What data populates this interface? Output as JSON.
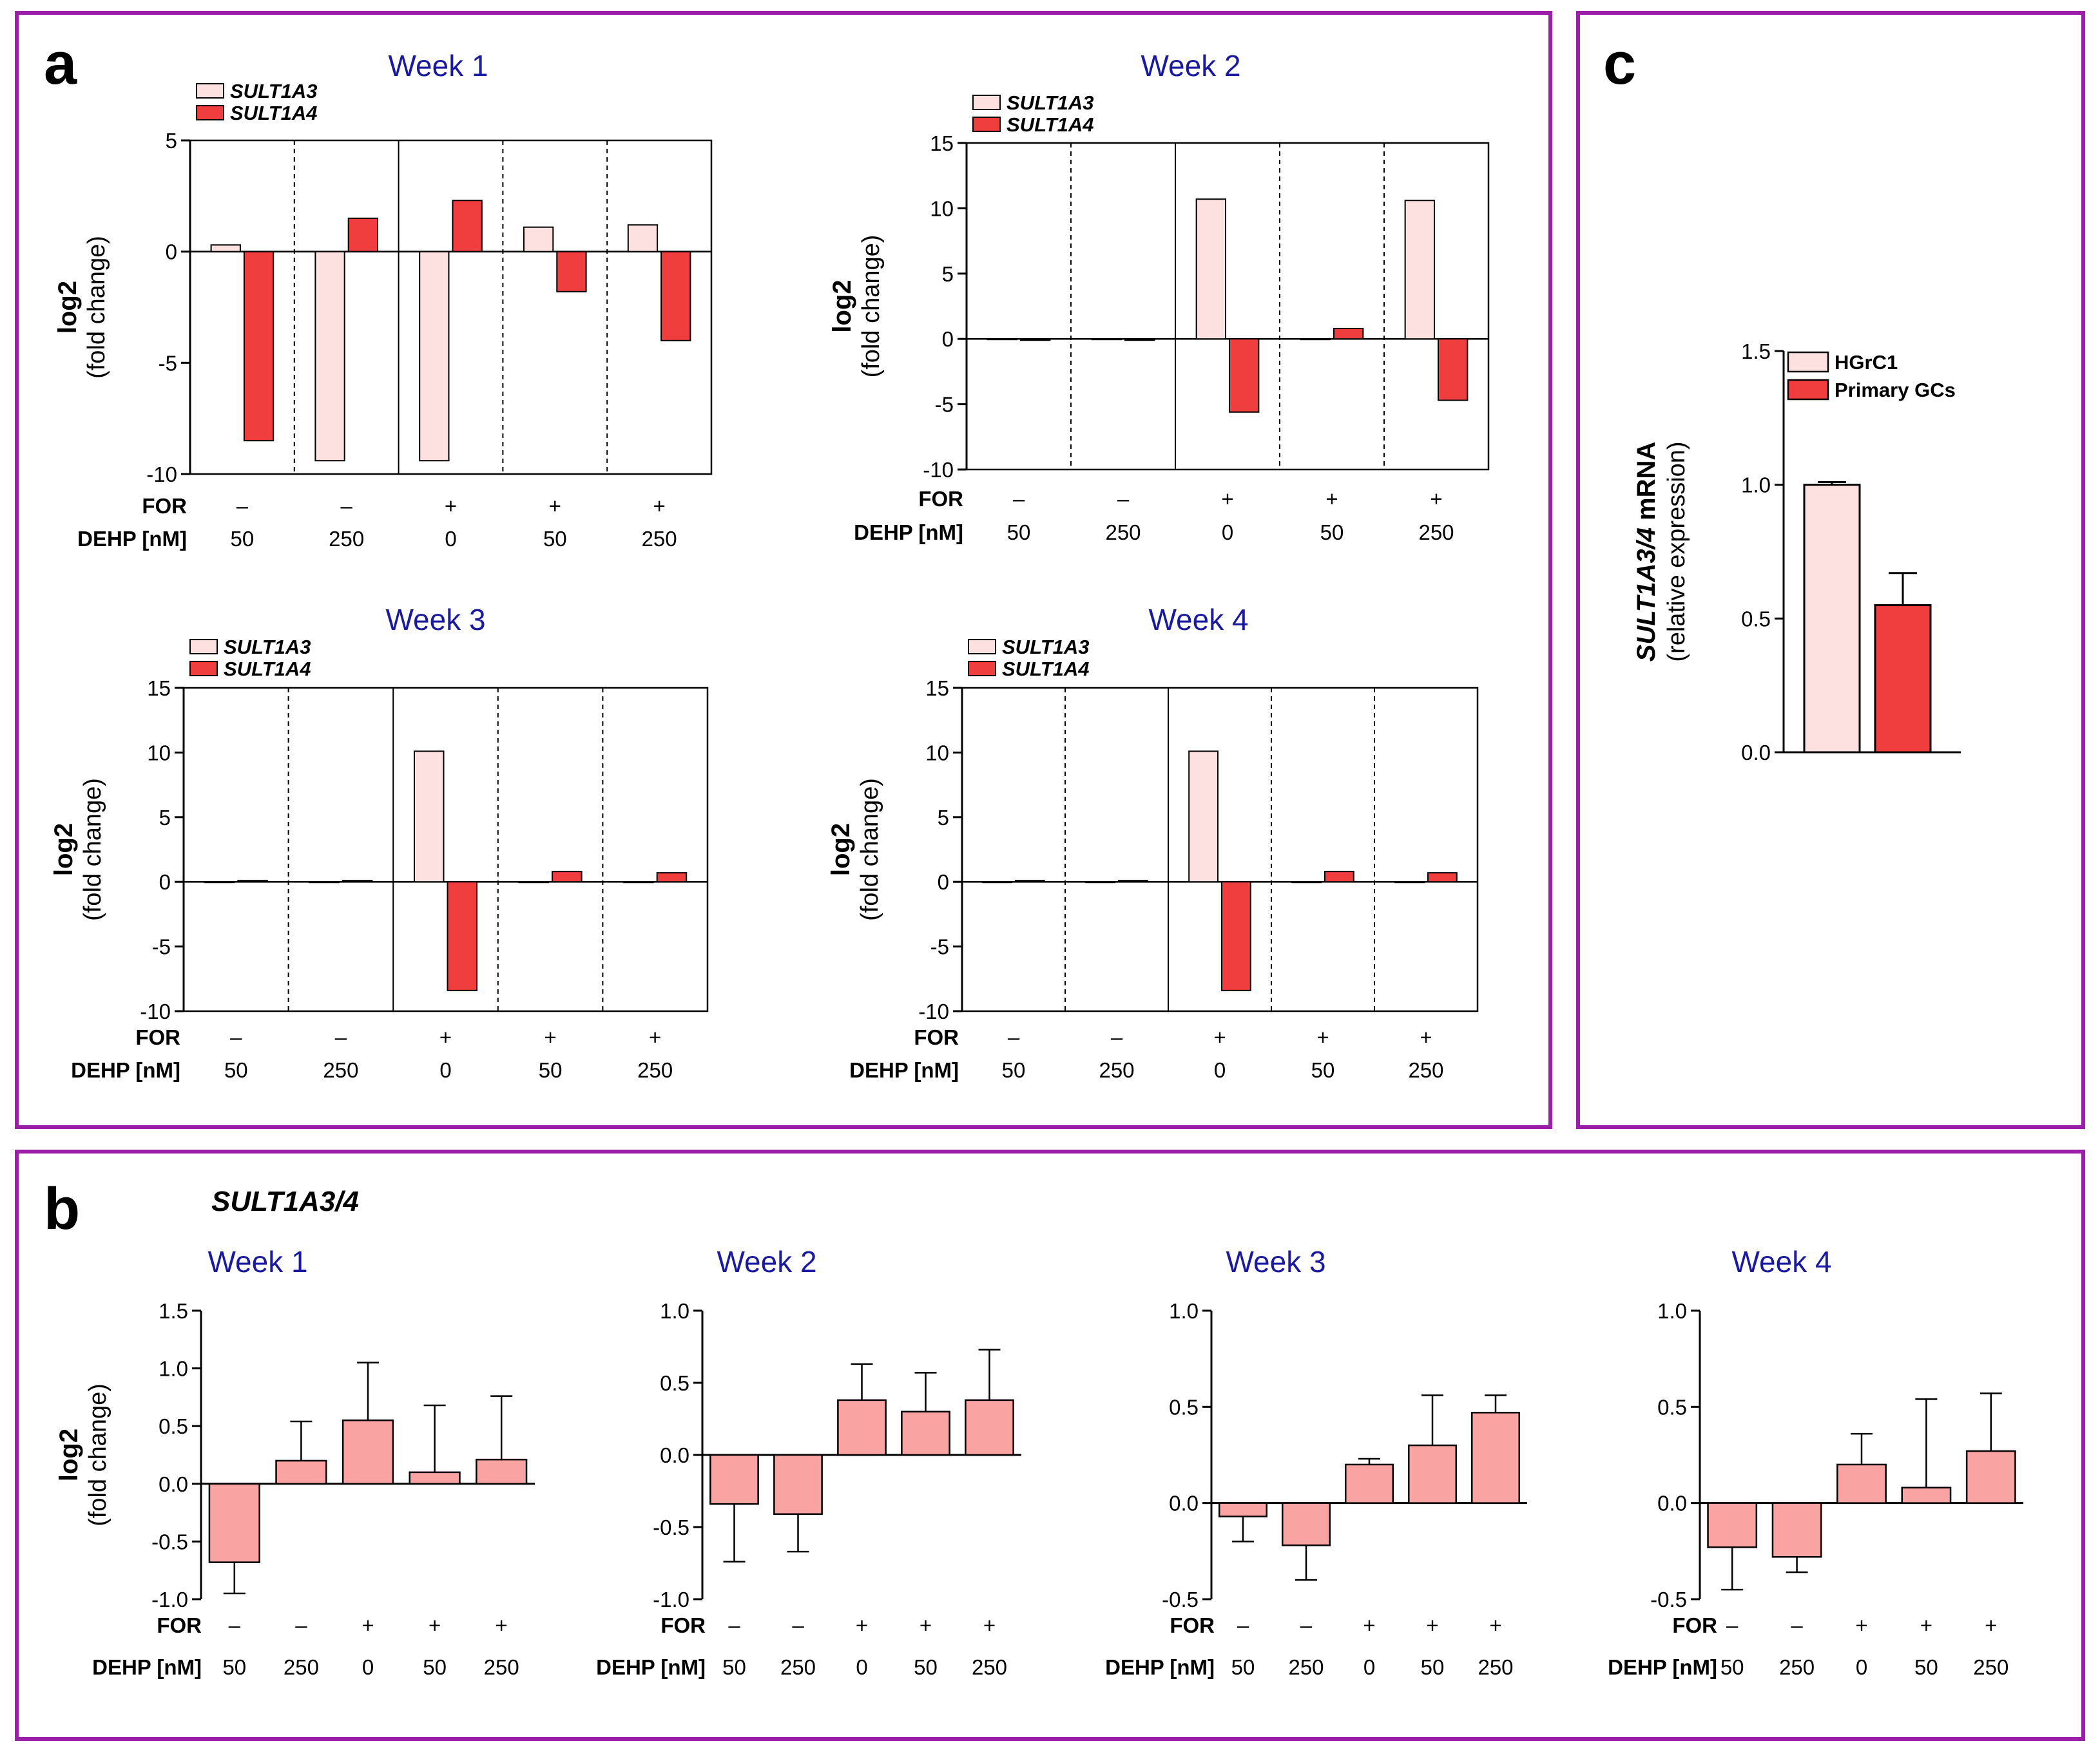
{
  "figure": {
    "frame_color": "#9b1fa8",
    "colors": {
      "sult1a3": "#fde0e0",
      "sult1a4": "#f03e3e",
      "combined": "#f9a3a3",
      "hgrc1": "#fde0e0",
      "primary": "#f03e3e",
      "week_title": "#1a1aa0"
    }
  },
  "panels": {
    "a": {
      "letter": "a",
      "legend": {
        "sult1a3": "SULT1A3",
        "sult1a4": "SULT1A4"
      },
      "ylabel_bold": "log2",
      "ylabel": "(fold change)",
      "row_for": "FOR",
      "row_dehp": "DEHP [nM]",
      "for_values": [
        "–",
        "–",
        "+",
        "+",
        "+"
      ],
      "dehp_values": [
        "50",
        "250",
        "0",
        "50",
        "250"
      ]
    },
    "b": {
      "letter": "b",
      "gene": "SULT1A3/4",
      "ylabel_bold": "log2",
      "ylabel": "(fold change)",
      "row_for": "FOR",
      "row_dehp": "DEHP [nM]",
      "for_values": [
        "–",
        "–",
        "+",
        "+",
        "+"
      ],
      "dehp_values": [
        "50",
        "250",
        "0",
        "50",
        "250"
      ]
    },
    "c": {
      "letter": "c",
      "ylabel_italic": "SULT1A3/4",
      "ylabel_bold": " mRNA",
      "ylabel": "(relative expression)",
      "legend": {
        "hgrc1": "HGrC1",
        "primary": "Primary GCs"
      }
    }
  },
  "chart_data": [
    {
      "id": "a-week1",
      "panel": "a",
      "type": "bar",
      "title": "Week 1",
      "categories": [
        "50",
        "250",
        "0",
        "50",
        "250"
      ],
      "ylim": [
        -10,
        5
      ],
      "yticks": [
        -10,
        -5,
        0,
        5
      ],
      "series": [
        {
          "name": "SULT1A3",
          "values": [
            0.3,
            -9.4,
            -9.4,
            1.1,
            1.2
          ]
        },
        {
          "name": "SULT1A4",
          "values": [
            -8.5,
            1.5,
            2.3,
            -1.8,
            -4.0
          ]
        }
      ]
    },
    {
      "id": "a-week2",
      "panel": "a",
      "type": "bar",
      "title": "Week 2",
      "categories": [
        "50",
        "250",
        "0",
        "50",
        "250"
      ],
      "ylim": [
        -10,
        15
      ],
      "yticks": [
        -10,
        -5,
        0,
        5,
        10,
        15
      ],
      "series": [
        {
          "name": "SULT1A3",
          "values": [
            0,
            0,
            10.7,
            0,
            10.6
          ]
        },
        {
          "name": "SULT1A4",
          "values": [
            -0.1,
            -0.1,
            -5.6,
            0.8,
            -4.7
          ]
        }
      ]
    },
    {
      "id": "a-week3",
      "panel": "a",
      "type": "bar",
      "title": "Week 3",
      "categories": [
        "50",
        "250",
        "0",
        "50",
        "250"
      ],
      "ylim": [
        -10,
        15
      ],
      "yticks": [
        -10,
        -5,
        0,
        5,
        10,
        15
      ],
      "series": [
        {
          "name": "SULT1A3",
          "values": [
            0,
            0,
            10.1,
            0,
            0
          ]
        },
        {
          "name": "SULT1A4",
          "values": [
            0.1,
            0.1,
            -8.4,
            0.8,
            0.7
          ]
        }
      ]
    },
    {
      "id": "a-week4",
      "panel": "a",
      "type": "bar",
      "title": "Week 4",
      "categories": [
        "50",
        "250",
        "0",
        "50",
        "250"
      ],
      "ylim": [
        -10,
        15
      ],
      "yticks": [
        -10,
        -5,
        0,
        5,
        10,
        15
      ],
      "series": [
        {
          "name": "SULT1A3",
          "values": [
            0,
            0,
            10.1,
            0,
            0
          ]
        },
        {
          "name": "SULT1A4",
          "values": [
            0.1,
            0.1,
            -8.4,
            0.8,
            0.7
          ]
        }
      ]
    },
    {
      "id": "b-week1",
      "panel": "b",
      "type": "bar",
      "title": "Week 1",
      "categories": [
        "50",
        "250",
        "0",
        "50",
        "250"
      ],
      "ylim": [
        -1.0,
        1.5
      ],
      "yticks": [
        -1.0,
        -0.5,
        0.0,
        0.5,
        1.0,
        1.5
      ],
      "tick_decimals": 1,
      "series": [
        {
          "name": "SULT1A3/4",
          "values": [
            -0.68,
            0.2,
            0.55,
            0.1,
            0.21
          ],
          "errors": [
            0.27,
            0.34,
            0.5,
            0.58,
            0.55
          ]
        }
      ]
    },
    {
      "id": "b-week2",
      "panel": "b",
      "type": "bar",
      "title": "Week 2",
      "categories": [
        "50",
        "250",
        "0",
        "50",
        "250"
      ],
      "ylim": [
        -1.0,
        1.0
      ],
      "yticks": [
        -1.0,
        -0.5,
        0.0,
        0.5,
        1.0
      ],
      "tick_decimals": 1,
      "series": [
        {
          "name": "SULT1A3/4",
          "values": [
            -0.34,
            -0.41,
            0.38,
            0.3,
            0.38
          ],
          "errors": [
            0.4,
            0.26,
            0.25,
            0.27,
            0.35
          ]
        }
      ]
    },
    {
      "id": "b-week3",
      "panel": "b",
      "type": "bar",
      "title": "Week 3",
      "categories": [
        "50",
        "250",
        "0",
        "50",
        "250"
      ],
      "ylim": [
        -0.5,
        1.0
      ],
      "yticks": [
        -0.5,
        0.0,
        0.5,
        1.0
      ],
      "tick_decimals": 1,
      "series": [
        {
          "name": "SULT1A3/4",
          "values": [
            -0.07,
            -0.22,
            0.2,
            0.3,
            0.47
          ],
          "errors": [
            0.13,
            0.18,
            0.03,
            0.26,
            0.09
          ]
        }
      ]
    },
    {
      "id": "b-week4",
      "panel": "b",
      "type": "bar",
      "title": "Week 4",
      "categories": [
        "50",
        "250",
        "0",
        "50",
        "250"
      ],
      "ylim": [
        -0.5,
        1.0
      ],
      "yticks": [
        -0.5,
        0.0,
        0.5,
        1.0
      ],
      "tick_decimals": 1,
      "series": [
        {
          "name": "SULT1A3/4",
          "values": [
            -0.23,
            -0.28,
            0.2,
            0.08,
            0.27
          ],
          "errors": [
            0.22,
            0.08,
            0.16,
            0.46,
            0.3
          ]
        }
      ]
    },
    {
      "id": "c",
      "panel": "c",
      "type": "bar",
      "title": "",
      "categories": [
        "HGrC1",
        "Primary GCs"
      ],
      "ylim": [
        0.0,
        1.5
      ],
      "yticks": [
        0.0,
        0.5,
        1.0,
        1.5
      ],
      "tick_decimals": 1,
      "series": [
        {
          "name": "relative expression",
          "values": [
            1.0,
            0.55
          ],
          "errors": [
            0.01,
            0.12
          ]
        }
      ]
    }
  ]
}
